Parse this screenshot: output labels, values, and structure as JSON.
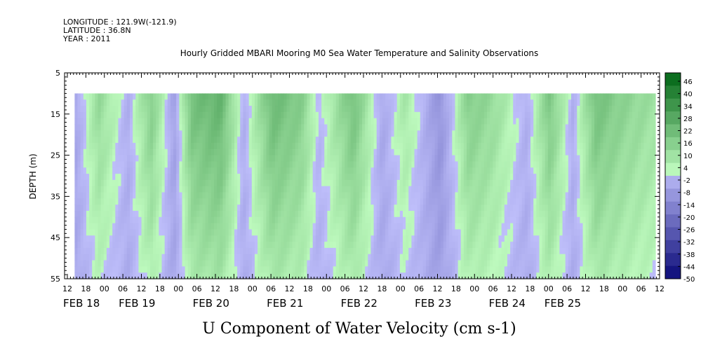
{
  "header": {
    "longitude": "LONGITUDE : 121.9W(-121.9)",
    "latitude": "LATITUDE : 36.8N",
    "year": "YEAR : 2011",
    "title": "Hourly Gridded MBARI Mooring M0 Sea Water Temperature and Salinity Observations"
  },
  "chart_data": {
    "type": "heatmap",
    "title": "Hourly Gridded MBARI Mooring M0 Sea Water Temperature and Salinity Observations",
    "xlabel": "",
    "ylabel": "DEPTH (m)",
    "variable_label": "U Component of Water Velocity (cm s-1)",
    "x_range": [
      "FEB 18 10:00",
      "FEB 25 13:00"
    ],
    "data_start": "FEB 18 16:00",
    "y_range": [
      5,
      55
    ],
    "y_reversed": true,
    "y_ticks": [
      5,
      15,
      25,
      35,
      45,
      55
    ],
    "data_depth_range": [
      10,
      55
    ],
    "x_tick_hours": [
      "12",
      "18",
      "00",
      "06",
      "12",
      "18",
      "00",
      "06",
      "12",
      "18",
      "00",
      "06",
      "12",
      "18",
      "00",
      "06",
      "12",
      "18",
      "00",
      "06",
      "12",
      "18",
      "00",
      "06",
      "12",
      "18",
      "00",
      "06",
      "12",
      "18",
      "00",
      "06",
      "12"
    ],
    "date_labels": [
      "FEB 18",
      "FEB 19",
      "FEB 20",
      "FEB 21",
      "FEB 22",
      "FEB 23",
      "FEB 24",
      "FEB 25"
    ],
    "colorbar": {
      "levels": [
        -50,
        -44,
        -38,
        -32,
        -26,
        -20,
        -14,
        -8,
        -2,
        4,
        10,
        16,
        22,
        28,
        34,
        40,
        46
      ],
      "tick_labels": [
        "46",
        "40",
        "34",
        "28",
        "22",
        "16",
        "10",
        "4",
        "-2",
        "-8",
        "-14",
        "-20",
        "-26",
        "-32",
        "-38",
        "-44",
        "-50"
      ]
    },
    "pattern_note": "",
    "bands": [
      {
        "x": 0.0,
        "v": -6
      },
      {
        "x": 0.04,
        "v": 10
      },
      {
        "x": 0.09,
        "v": -4
      },
      {
        "x": 0.13,
        "v": 14
      },
      {
        "x": 0.17,
        "v": -8
      },
      {
        "x": 0.2,
        "v": 18
      },
      {
        "x": 0.25,
        "v": 22
      },
      {
        "x": 0.29,
        "v": -4
      },
      {
        "x": 0.34,
        "v": 20
      },
      {
        "x": 0.39,
        "v": 14
      },
      {
        "x": 0.42,
        "v": -2
      },
      {
        "x": 0.48,
        "v": 18
      },
      {
        "x": 0.53,
        "v": -6
      },
      {
        "x": 0.57,
        "v": 6
      },
      {
        "x": 0.63,
        "v": -12
      },
      {
        "x": 0.68,
        "v": 14
      },
      {
        "x": 0.72,
        "v": 10
      },
      {
        "x": 0.78,
        "v": -4
      },
      {
        "x": 0.82,
        "v": 16
      },
      {
        "x": 0.86,
        "v": -4
      },
      {
        "x": 0.9,
        "v": 18
      },
      {
        "x": 0.95,
        "v": 12
      },
      {
        "x": 1.0,
        "v": 8
      }
    ]
  }
}
